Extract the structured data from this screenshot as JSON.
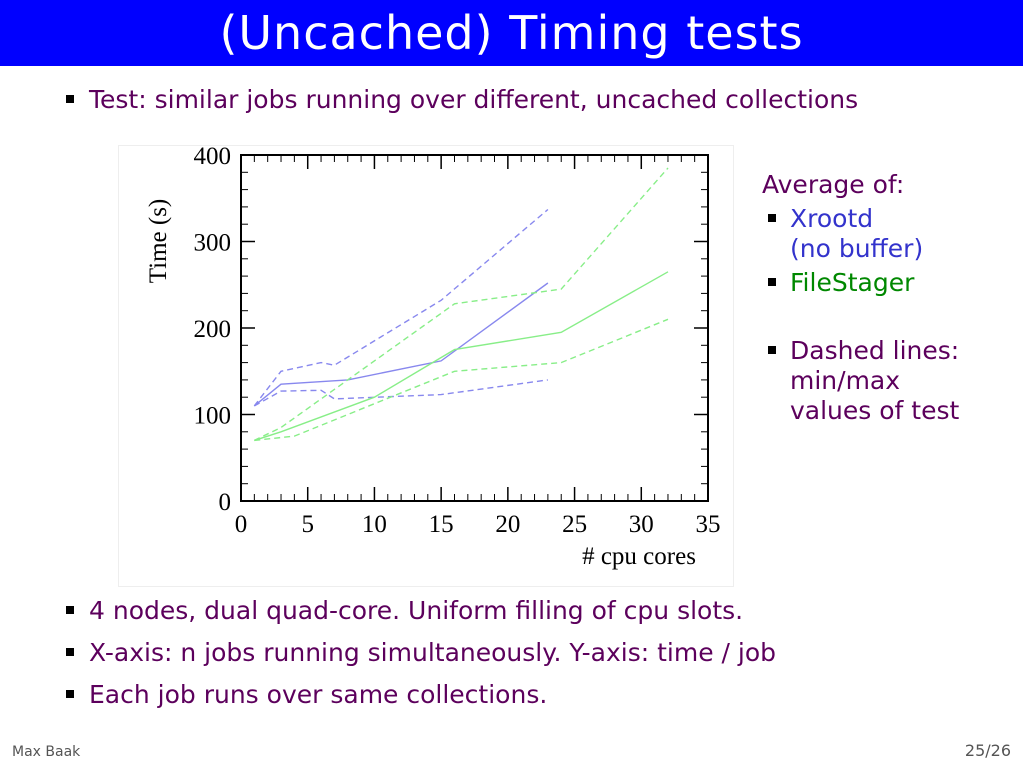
{
  "slide": {
    "title": "(Uncached) Timing tests",
    "top_bullets": [
      "Test: similar jobs running over different, uncached collections"
    ],
    "bottom_bullets": [
      "4 nodes, dual quad-core. Uniform filling of cpu slots.",
      "X-axis: n jobs running simultaneously. Y-axis: time / job",
      "Each job runs over same collections."
    ],
    "legend": {
      "heading": "Average of:",
      "xrootd_line1": "Xrootd",
      "xrootd_line2": "(no buffer)",
      "filestager": "FileStager",
      "dashed_line1": "Dashed lines:",
      "dashed_line2": "min/max",
      "dashed_line3": "values of test"
    },
    "footer": {
      "author": "Max Baak",
      "page": "25/26"
    },
    "colors": {
      "title_bg": "#0000ff",
      "text": "#5c005c",
      "xrootd": "#3333cc",
      "filestager": "#008800"
    }
  },
  "chart_data": {
    "type": "line",
    "xlabel": "# cpu cores",
    "ylabel": "Time (s)",
    "xlim": [
      0,
      35
    ],
    "ylim": [
      0,
      400
    ],
    "x_ticks": [
      0,
      5,
      10,
      15,
      20,
      25,
      30,
      35
    ],
    "y_ticks": [
      0,
      100,
      200,
      300,
      400
    ],
    "grid": false,
    "series": [
      {
        "group": "Xrootd",
        "kind": "average",
        "style": "solid",
        "color": "#8888ee",
        "x": [
          1,
          3,
          8,
          15,
          23
        ],
        "y": [
          110,
          135,
          140,
          162,
          252
        ]
      },
      {
        "group": "Xrootd",
        "kind": "max",
        "style": "dashed",
        "color": "#8888ee",
        "x": [
          1,
          3,
          6,
          7,
          15,
          23
        ],
        "y": [
          110,
          150,
          160,
          157,
          232,
          337
        ]
      },
      {
        "group": "Xrootd",
        "kind": "min",
        "style": "dashed",
        "color": "#8888ee",
        "x": [
          1,
          3,
          6,
          7,
          15,
          23
        ],
        "y": [
          110,
          127,
          128,
          118,
          123,
          140
        ]
      },
      {
        "group": "FileStager",
        "kind": "average",
        "style": "solid",
        "color": "#88ee88",
        "x": [
          1,
          3,
          10,
          16,
          24,
          32
        ],
        "y": [
          70,
          80,
          120,
          175,
          195,
          265
        ]
      },
      {
        "group": "FileStager",
        "kind": "max",
        "style": "dashed",
        "color": "#88ee88",
        "x": [
          1,
          3,
          16,
          24,
          32
        ],
        "y": [
          70,
          85,
          228,
          245,
          385
        ]
      },
      {
        "group": "FileStager",
        "kind": "min",
        "style": "dashed",
        "color": "#88ee88",
        "x": [
          1,
          4,
          16,
          24,
          32
        ],
        "y": [
          70,
          75,
          150,
          160,
          210
        ]
      }
    ]
  }
}
